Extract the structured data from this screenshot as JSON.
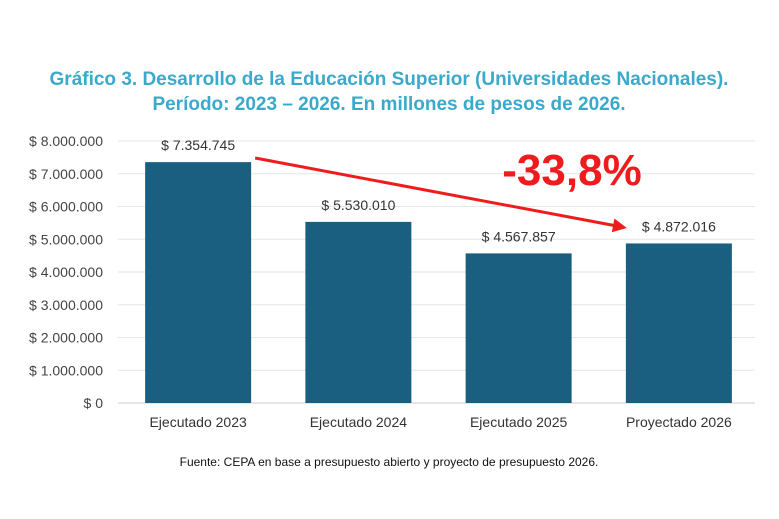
{
  "chart_data": {
    "type": "bar",
    "title": "Gráfico 3. Desarrollo de la Educación Superior (Universidades Nacionales).",
    "subtitle": "Período: 2023 – 2026. En millones de pesos de 2026.",
    "categories": [
      "Ejecutado 2023",
      "Ejecutado 2024",
      "Ejecutado 2025",
      "Proyectado 2026"
    ],
    "values": [
      7354745,
      5530010,
      4567857,
      4872016
    ],
    "data_labels": [
      "$ 7.354.745",
      "$ 5.530.010",
      "$ 4.567.857",
      "$ 4.872.016"
    ],
    "ylim": [
      0,
      8000000
    ],
    "yticks": [
      0,
      1000000,
      2000000,
      3000000,
      4000000,
      5000000,
      6000000,
      7000000,
      8000000
    ],
    "ytick_labels": [
      "$ 0",
      "$ 1.000.000",
      "$ 2.000.000",
      "$ 3.000.000",
      "$ 4.000.000",
      "$ 5.000.000",
      "$ 6.000.000",
      "$ 7.000.000",
      "$ 8.000.000"
    ],
    "grid": true,
    "bar_color": "#1a5e80",
    "annotation": {
      "text": "-33,8%",
      "color": "#ee1c1c",
      "arrow_from": "Ejecutado 2023",
      "arrow_to": "Proyectado 2026"
    },
    "source": "Fuente: CEPA en base a presupuesto abierto y proyecto de presupuesto 2026."
  }
}
